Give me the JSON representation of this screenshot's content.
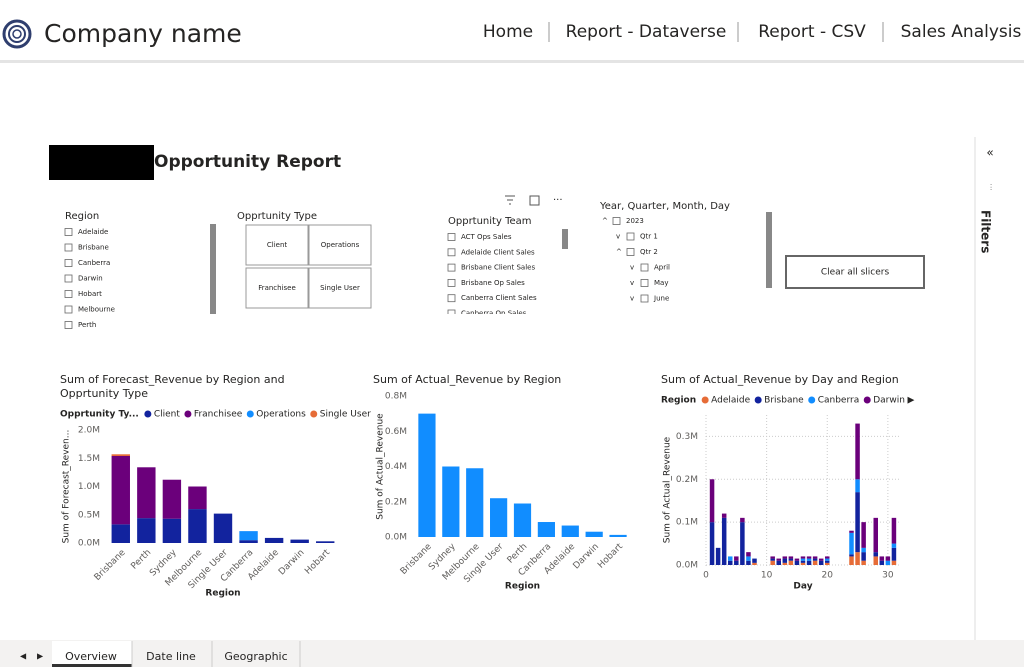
{
  "header": {
    "company": "Company name",
    "nav": [
      "Home",
      "Report - Dataverse",
      "Report - CSV",
      "Sales Analysis"
    ]
  },
  "report_title": "Opportunity Report",
  "slicers": {
    "region": {
      "title": "Region",
      "items": [
        "Adelaide",
        "Brisbane",
        "Canberra",
        "Darwin",
        "Hobart",
        "Melbourne",
        "Perth"
      ]
    },
    "type": {
      "title": "Opprtunity Type",
      "items": [
        "Client",
        "Operations",
        "Franchisee",
        "Single User"
      ]
    },
    "team": {
      "title": "Opprtunity Team",
      "items": [
        "ACT Ops Sales",
        "Adelaide Client Sales",
        "Brisbane Client Sales",
        "Brisbane Op Sales",
        "Canberra Client Sales",
        "Canberra Op Sales"
      ]
    },
    "date": {
      "title": "Year, Quarter, Month, Day",
      "items": [
        "2023",
        "Qtr 1",
        "Qtr 2",
        "April",
        "May",
        "June"
      ]
    }
  },
  "clear_button": "Clear all slicers",
  "filters_label": "Filters",
  "tabs": [
    "Overview",
    "Date line",
    "Geographic"
  ],
  "chart_data": [
    {
      "type": "stacked_bar",
      "title": "Sum of Forecast_Revenue by Region and Opprtunity Type",
      "x_label": "Region",
      "y_label": "Sum of Forecast_Reven...",
      "legend_title": "Opprtunity Ty...",
      "categories": [
        "Brisbane",
        "Perth",
        "Sydney",
        "Melbourne",
        "Single User",
        "Canberra",
        "Adelaide",
        "Darwin",
        "Hobart"
      ],
      "series": [
        {
          "name": "Client",
          "color": "#12239e",
          "values": [
            330000,
            440000,
            430000,
            600000,
            520000,
            50000,
            90000,
            60000,
            30000
          ]
        },
        {
          "name": "Franchisee",
          "color": "#6b007b",
          "values": [
            1210000,
            900000,
            690000,
            400000,
            0,
            0,
            0,
            0,
            0
          ]
        },
        {
          "name": "Operations",
          "color": "#118dff",
          "values": [
            0,
            0,
            0,
            0,
            0,
            160000,
            0,
            0,
            0
          ]
        },
        {
          "name": "Single User",
          "color": "#e66c37",
          "values": [
            30000,
            0,
            0,
            0,
            0,
            0,
            0,
            0,
            0
          ]
        }
      ],
      "ylim": [
        0,
        2000000
      ],
      "yticks": [
        {
          "value": 0,
          "label": "0.0M"
        },
        {
          "value": 500000,
          "label": "0.5M"
        },
        {
          "value": 1000000,
          "label": "1.0M"
        },
        {
          "value": 1500000,
          "label": "1.5M"
        },
        {
          "value": 2000000,
          "label": "2.0M"
        }
      ],
      "grid": false
    },
    {
      "type": "bar",
      "title": "Sum of Actual_Revenue by Region",
      "x_label": "Region",
      "y_label": "Sum of Actual_Revenue",
      "categories": [
        "Brisbane",
        "Sydney",
        "Melbourne",
        "Single User",
        "Perth",
        "Canberra",
        "Adelaide",
        "Darwin",
        "Hobart"
      ],
      "values": [
        700000,
        400000,
        390000,
        220000,
        190000,
        85000,
        65000,
        30000,
        12000
      ],
      "color": "#118dff",
      "ylim": [
        0,
        800000
      ],
      "yticks": [
        {
          "value": 0,
          "label": "0.0M"
        },
        {
          "value": 200000,
          "label": "0.2M"
        },
        {
          "value": 400000,
          "label": "0.4M"
        },
        {
          "value": 600000,
          "label": "0.6M"
        },
        {
          "value": 800000,
          "label": "0.8M"
        }
      ],
      "grid": false
    },
    {
      "type": "stacked_bar",
      "title": "Sum of Actual_Revenue by Day and Region",
      "x_label": "Day",
      "y_label": "Sum of Actual_Revenue",
      "legend_title": "Region",
      "x": [
        1,
        2,
        3,
        4,
        5,
        6,
        7,
        8,
        9,
        10,
        11,
        12,
        13,
        14,
        15,
        16,
        17,
        18,
        19,
        20,
        21,
        22,
        23,
        24,
        25,
        26,
        27,
        28,
        29,
        30,
        31
      ],
      "series": [
        {
          "name": "Adelaide",
          "color": "#e66c37",
          "values": [
            0,
            0,
            0,
            0,
            0,
            0,
            0,
            5000,
            0,
            0,
            10000,
            0,
            5000,
            10000,
            0,
            5000,
            0,
            10000,
            0,
            5000,
            0,
            0,
            0,
            20000,
            30000,
            10000,
            0,
            20000,
            0,
            0,
            10000
          ]
        },
        {
          "name": "Brisbane",
          "color": "#12239e",
          "values": [
            100000,
            40000,
            110000,
            10000,
            10000,
            100000,
            10000,
            10000,
            0,
            0,
            5000,
            10000,
            10000,
            5000,
            10000,
            5000,
            10000,
            5000,
            10000,
            5000,
            0,
            0,
            0,
            5000,
            140000,
            20000,
            0,
            10000,
            10000,
            0,
            30000
          ]
        },
        {
          "name": "Canberra",
          "color": "#118dff",
          "values": [
            0,
            0,
            0,
            10000,
            0,
            0,
            10000,
            0,
            0,
            0,
            0,
            0,
            0,
            0,
            0,
            5000,
            5000,
            0,
            0,
            5000,
            0,
            0,
            0,
            50000,
            30000,
            10000,
            0,
            0,
            0,
            10000,
            10000
          ]
        },
        {
          "name": "Darwin",
          "color": "#6b007b",
          "values": [
            100000,
            0,
            10000,
            0,
            10000,
            10000,
            10000,
            0,
            0,
            0,
            5000,
            5000,
            5000,
            5000,
            5000,
            5000,
            5000,
            5000,
            5000,
            5000,
            0,
            0,
            0,
            5000,
            130000,
            60000,
            0,
            80000,
            10000,
            10000,
            60000
          ]
        }
      ],
      "xlim": [
        0,
        32
      ],
      "xticks": [
        0,
        10,
        20,
        30
      ],
      "ylim": [
        0,
        350000
      ],
      "yticks": [
        {
          "value": 0,
          "label": "0.0M"
        },
        {
          "value": 100000,
          "label": "0.1M"
        },
        {
          "value": 200000,
          "label": "0.2M"
        },
        {
          "value": 300000,
          "label": "0.3M"
        }
      ],
      "grid": true
    }
  ]
}
